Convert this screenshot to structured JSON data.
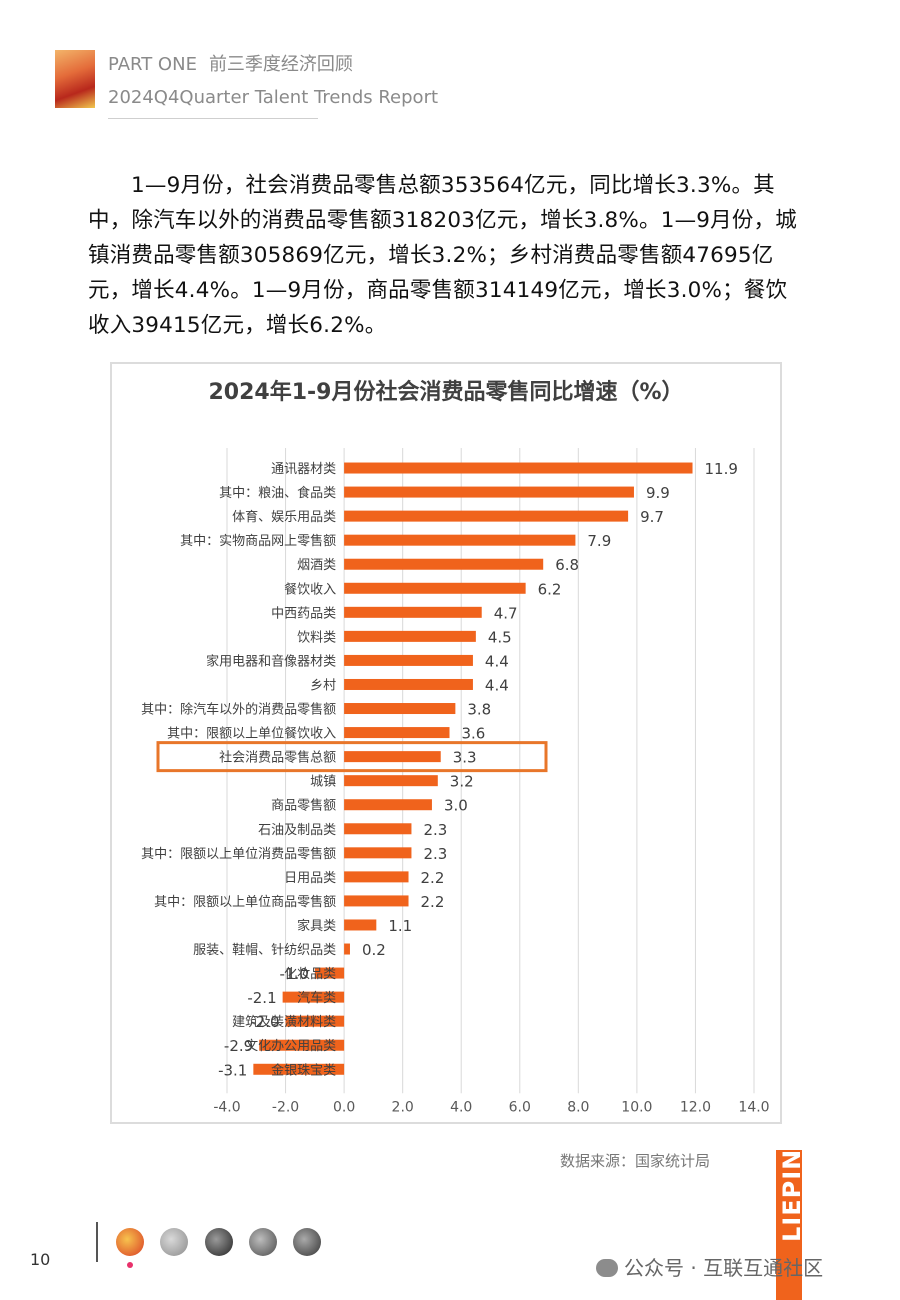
{
  "header": {
    "part_label": "PART ONE",
    "section_title": "前三季度经济回顾",
    "report_title": "2024Q4Quarter Talent Trends Report"
  },
  "paragraph": "1—9月份，社会消费品零售总额353564亿元，同比增长3.3%。其中，除汽车以外的消费品零售额318203亿元，增长3.8%。1—9月份，城镇消费品零售额305869亿元，增长3.2%；乡村消费品零售额47695亿元，增长4.4%。1—9月份，商品零售额314149亿元，增长3.0%；餐饮收入39415亿元，增长6.2%。",
  "chart_data": {
    "type": "bar",
    "orientation": "horizontal",
    "title": "2024年1-9月份社会消费品零售同比增速（%）",
    "categories": [
      "通讯器材类",
      "其中：粮油、食品类",
      "体育、娱乐用品类",
      "其中：实物商品网上零售额",
      "烟酒类",
      "餐饮收入",
      "中西药品类",
      "饮料类",
      "家用电器和音像器材类",
      "乡村",
      "其中：除汽车以外的消费品零售额",
      "其中：限额以上单位餐饮收入",
      "社会消费品零售总额",
      "城镇",
      "商品零售额",
      "石油及制品类",
      "其中：限额以上单位消费品零售额",
      "日用品类",
      "其中：限额以上单位商品零售额",
      "家具类",
      "服装、鞋帽、针纺织品类",
      "化妆品类",
      "汽车类",
      "建筑及装潢材料类",
      "文化办公用品类",
      "金银珠宝类"
    ],
    "values": [
      11.9,
      9.9,
      9.7,
      7.9,
      6.8,
      6.2,
      4.7,
      4.5,
      4.4,
      4.4,
      3.8,
      3.6,
      3.3,
      3.2,
      3.0,
      2.3,
      2.3,
      2.2,
      2.2,
      1.1,
      0.2,
      -1.0,
      -2.1,
      -2.0,
      -2.9,
      -3.1
    ],
    "value_labels": [
      "11.9",
      "9.9",
      "9.7",
      "7.9",
      "6.8",
      "6.2",
      "4.7",
      "4.5",
      "4.4",
      "4.4",
      "3.8",
      "3.6",
      "3.3",
      "3.2",
      "3.0",
      "2.3",
      "2.3",
      "2.2",
      "2.2",
      "1.1",
      "0.2",
      "-1.0",
      "-2.1",
      "-2.0",
      "-2.9",
      "-3.1"
    ],
    "highlighted_category": "社会消费品零售总额",
    "xlim": [
      -4.0,
      14.0
    ],
    "xticks": [
      "-4.0",
      "-2.0",
      "0.0",
      "2.0",
      "4.0",
      "6.0",
      "8.0",
      "10.0",
      "12.0",
      "14.0"
    ],
    "grid": "vertical",
    "bar_color": "#f0631c",
    "highlight_color": "#e8762a"
  },
  "source_note": "数据来源：国家统计局",
  "brand": "LIEPIN",
  "page_number": "10",
  "wechat_watermark": "公众号 · 互联互通社区"
}
